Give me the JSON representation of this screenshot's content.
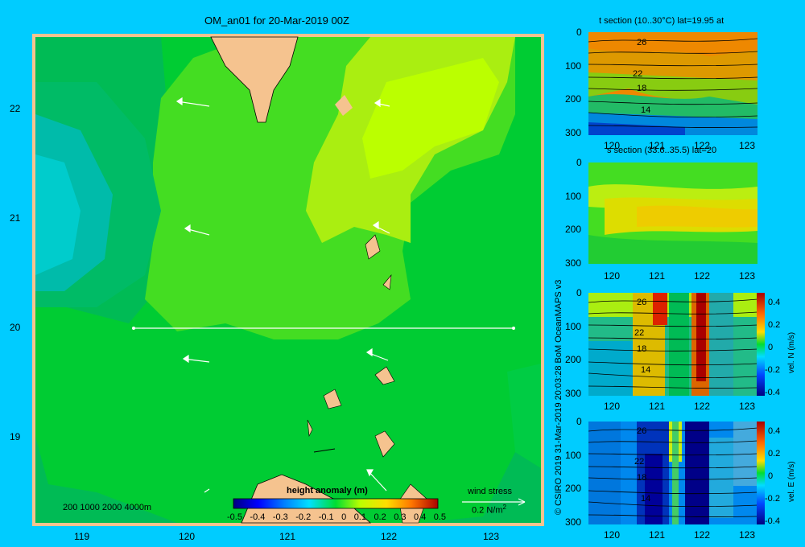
{
  "main": {
    "title": "OM_an01 for 20-Mar-2019 00Z",
    "x_ticks": [
      "119",
      "120",
      "121",
      "122",
      "123"
    ],
    "y_ticks": [
      "22",
      "21",
      "20",
      "19"
    ],
    "depth_legend": "200  1000  2000  4000m",
    "colorbar_title": "height anomaly (m)",
    "colorbar_ticks": [
      "-0.5",
      "-0.4",
      "-0.3",
      "-0.2",
      "-0.1",
      "0",
      "0.1",
      "0.2",
      "0.3",
      "0.4",
      "0.5"
    ],
    "wind_label": "wind stress",
    "wind_scale": "0.2 N/m",
    "wind_scale_sup": "2",
    "section_latitude": 20,
    "copyright": "© CSIRO 2019   31-Mar-2019 20:03:28 BoM OceanMAPS v3"
  },
  "panels": {
    "t_section": {
      "title": "t section (10..30°C) lat=19.95 at",
      "x_ticks": [
        "120",
        "121",
        "122",
        "123"
      ],
      "y_ticks": [
        "0",
        "100",
        "200",
        "300"
      ],
      "contour_labels": [
        "26",
        "22",
        "18",
        "14"
      ]
    },
    "s_section": {
      "title": "s section (33.6..35.5) lat=20",
      "x_ticks": [
        "120",
        "121",
        "122",
        "123"
      ],
      "y_ticks": [
        "0",
        "100",
        "200",
        "300"
      ]
    },
    "n_section": {
      "x_ticks": [
        "120",
        "121",
        "122",
        "123"
      ],
      "y_ticks": [
        "0",
        "100",
        "200",
        "300"
      ],
      "contour_labels": [
        "26",
        "22",
        "18",
        "14"
      ],
      "colorbar_ticks": [
        "0.4",
        "0.2",
        "0",
        "-0.2",
        "-0.4"
      ],
      "colorbar_label": "vel. N (m/s)"
    },
    "e_section": {
      "x_ticks": [
        "120",
        "121",
        "122",
        "123"
      ],
      "y_ticks": [
        "0",
        "100",
        "200",
        "300"
      ],
      "contour_labels": [
        "26",
        "22",
        "18",
        "14"
      ],
      "colorbar_ticks": [
        "0.4",
        "0.2",
        "0",
        "-0.2",
        "-0.4"
      ],
      "colorbar_label": "vel. E (m/s)"
    }
  },
  "chart_data": [
    {
      "type": "heatmap",
      "title": "OM_an01 for 20-Mar-2019 00Z",
      "x_range": [
        118.5,
        123.5
      ],
      "y_range": [
        18.3,
        22.7
      ],
      "colorbar": {
        "label": "height anomaly (m)",
        "range": [
          -0.5,
          0.5
        ]
      },
      "note": "sea surface height anomaly with wind stress vectors"
    },
    {
      "type": "heatmap",
      "title": "t section (10..30°C) lat=19.95 at",
      "x_range": [
        119.5,
        123.2
      ],
      "y_range": [
        300,
        0
      ]
    },
    {
      "type": "heatmap",
      "title": "s section (33.6..35.5) lat=20",
      "x_range": [
        119.5,
        123.2
      ],
      "y_range": [
        300,
        0
      ]
    },
    {
      "type": "heatmap",
      "x_range": [
        119.5,
        123.2
      ],
      "y_range": [
        300,
        0
      ],
      "colorbar": {
        "label": "vel. N (m/s)",
        "range": [
          -0.4,
          0.4
        ]
      }
    },
    {
      "type": "heatmap",
      "x_range": [
        119.5,
        123.2
      ],
      "y_range": [
        300,
        0
      ],
      "colorbar": {
        "label": "vel. E (m/s)",
        "range": [
          -0.4,
          0.4
        ]
      }
    }
  ]
}
